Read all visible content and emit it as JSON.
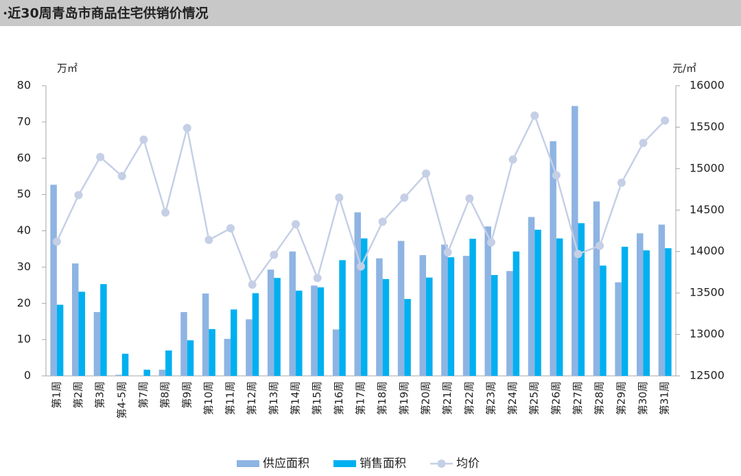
{
  "chart_data": {
    "type": "bar",
    "title": "·近30周青岛市商品住宅供销价情况",
    "y_label": "万㎡",
    "y2_label": "元/㎡",
    "categories": [
      "第1周",
      "第2周",
      "第3周",
      "第4-5周",
      "第7周",
      "第8周",
      "第9周",
      "第10周",
      "第11周",
      "第12周",
      "第13周",
      "第14周",
      "第15周",
      "第16周",
      "第17周",
      "第18周",
      "第19周",
      "第20周",
      "第21周",
      "第22周",
      "第23周",
      "第24周",
      "第25周",
      "第26周",
      "第27周",
      "第28周",
      "第29周",
      "第30周",
      "第31周"
    ],
    "series": [
      {
        "name": "供应面积",
        "type": "bar",
        "color": "#8eb4e3",
        "values": [
          52.7,
          31,
          17.6,
          0.3,
          0,
          1.7,
          17.6,
          22.7,
          10.2,
          15.6,
          29.3,
          34.3,
          24.9,
          12.8,
          45.1,
          32.4,
          37.2,
          33.3,
          36.2,
          33.1,
          41.2,
          28.9,
          43.8,
          64.7,
          74.4,
          48.1,
          25.8,
          39.3,
          41.7
        ]
      },
      {
        "name": "销售面积",
        "type": "bar",
        "color": "#00b0f0",
        "values": [
          19.6,
          23.2,
          25.3,
          6.1,
          1.7,
          7.0,
          9.8,
          12.9,
          18.3,
          22.8,
          27.0,
          23.5,
          24.4,
          31.9,
          37.9,
          26.7,
          21.2,
          27.1,
          32.7,
          37.8,
          27.8,
          34.3,
          40.3,
          37.9,
          42.1,
          30.4,
          35.6,
          34.6,
          35.2
        ]
      },
      {
        "name": "均价",
        "type": "line",
        "axis": "y2",
        "color": "#c5cfe6",
        "values": [
          14120,
          14680,
          15140,
          14910,
          15350,
          14470,
          15490,
          14140,
          14280,
          13600,
          13960,
          14330,
          13680,
          14650,
          13820,
          14360,
          14650,
          14940,
          13990,
          14640,
          14110,
          15110,
          15640,
          14920,
          13970,
          14070,
          14830,
          15310,
          15580
        ]
      }
    ],
    "ylim": [
      0,
      80
    ],
    "yticks": [
      0,
      10,
      20,
      30,
      40,
      50,
      60,
      70,
      80
    ],
    "y2lim": [
      12500,
      16000
    ],
    "y2ticks": [
      12500,
      13000,
      13500,
      14000,
      14500,
      15000,
      15500,
      16000
    ],
    "grid": false,
    "legend": "bottom"
  }
}
